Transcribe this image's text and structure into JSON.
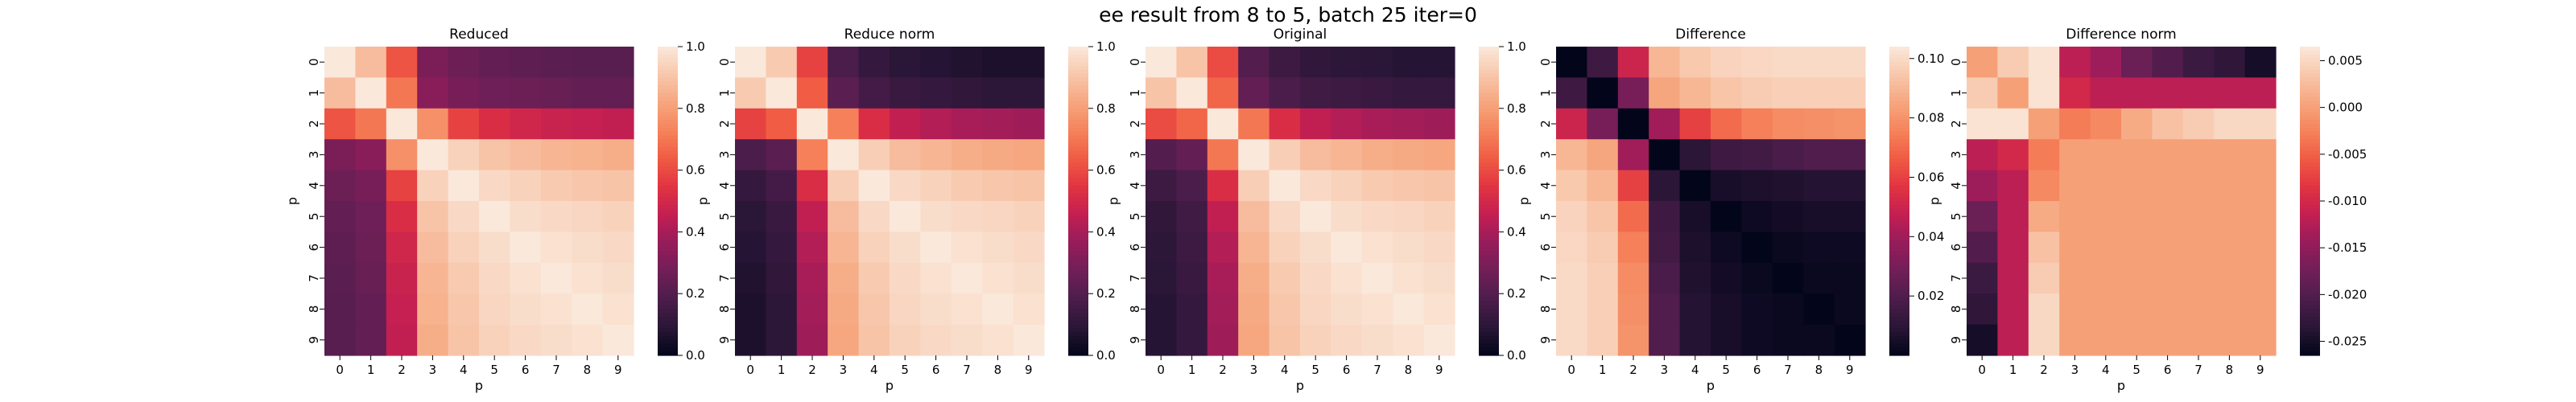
{
  "figure": {
    "title": "ee result from 8 to 5, batch 25 iter=0"
  },
  "palettes": {
    "rocket": [
      "#03051a",
      "#2a1636",
      "#4c1d4b",
      "#701f57",
      "#961c5b",
      "#c31f52",
      "#e13342",
      "#f05b43",
      "#f5835b",
      "#f6a67e",
      "#f8c7ab",
      "#fae8db"
    ]
  },
  "chart_data": [
    {
      "type": "heatmap",
      "title": "Reduced",
      "xlabel": "p",
      "ylabel": "p",
      "x_ticks": [
        "0",
        "1",
        "2",
        "3",
        "4",
        "5",
        "6",
        "7",
        "8",
        "9"
      ],
      "y_ticks": [
        "0",
        "1",
        "2",
        "3",
        "4",
        "5",
        "6",
        "7",
        "8",
        "9"
      ],
      "colorbar": {
        "min": 0.0,
        "max": 1.0,
        "ticks": [
          "0.0",
          "0.2",
          "0.4",
          "0.6",
          "0.8",
          "1.0"
        ],
        "tick_values": [
          0.0,
          0.2,
          0.4,
          0.6,
          0.8,
          1.0
        ]
      },
      "values": [
        [
          1.0,
          0.88,
          0.62,
          0.3,
          0.26,
          0.24,
          0.23,
          0.22,
          0.21,
          0.21
        ],
        [
          0.88,
          1.0,
          0.7,
          0.33,
          0.29,
          0.27,
          0.26,
          0.25,
          0.24,
          0.24
        ],
        [
          0.62,
          0.7,
          1.0,
          0.76,
          0.58,
          0.52,
          0.49,
          0.47,
          0.46,
          0.45
        ],
        [
          0.3,
          0.33,
          0.76,
          1.0,
          0.94,
          0.9,
          0.88,
          0.86,
          0.85,
          0.84
        ],
        [
          0.26,
          0.29,
          0.58,
          0.94,
          1.0,
          0.96,
          0.94,
          0.92,
          0.91,
          0.9
        ],
        [
          0.24,
          0.27,
          0.52,
          0.9,
          0.96,
          1.0,
          0.97,
          0.96,
          0.95,
          0.94
        ],
        [
          0.23,
          0.26,
          0.49,
          0.88,
          0.94,
          0.97,
          1.0,
          0.98,
          0.97,
          0.96
        ],
        [
          0.22,
          0.25,
          0.47,
          0.86,
          0.92,
          0.96,
          0.98,
          1.0,
          0.98,
          0.97
        ],
        [
          0.21,
          0.24,
          0.46,
          0.85,
          0.91,
          0.95,
          0.97,
          0.98,
          1.0,
          0.98
        ],
        [
          0.21,
          0.24,
          0.45,
          0.84,
          0.9,
          0.94,
          0.96,
          0.97,
          0.98,
          1.0
        ]
      ]
    },
    {
      "type": "heatmap",
      "title": "Reduce norm",
      "xlabel": "p",
      "ylabel": "p",
      "x_ticks": [
        "0",
        "1",
        "2",
        "3",
        "4",
        "5",
        "6",
        "7",
        "8",
        "9"
      ],
      "y_ticks": [
        "0",
        "1",
        "2",
        "3",
        "4",
        "5",
        "6",
        "7",
        "8",
        "9"
      ],
      "colorbar": {
        "min": 0.0,
        "max": 1.0,
        "ticks": [
          "0.0",
          "0.2",
          "0.4",
          "0.6",
          "0.8",
          "1.0"
        ],
        "tick_values": [
          0.0,
          0.2,
          0.4,
          0.6,
          0.8,
          1.0
        ]
      },
      "values": [
        [
          1.0,
          0.92,
          0.58,
          0.18,
          0.12,
          0.09,
          0.08,
          0.07,
          0.06,
          0.06
        ],
        [
          0.92,
          1.0,
          0.64,
          0.22,
          0.16,
          0.13,
          0.12,
          0.11,
          0.1,
          0.1
        ],
        [
          0.58,
          0.64,
          1.0,
          0.72,
          0.52,
          0.45,
          0.42,
          0.4,
          0.39,
          0.38
        ],
        [
          0.18,
          0.22,
          0.72,
          1.0,
          0.93,
          0.88,
          0.86,
          0.84,
          0.83,
          0.82
        ],
        [
          0.12,
          0.16,
          0.52,
          0.93,
          1.0,
          0.96,
          0.94,
          0.92,
          0.91,
          0.9
        ],
        [
          0.09,
          0.13,
          0.45,
          0.88,
          0.96,
          1.0,
          0.97,
          0.96,
          0.95,
          0.94
        ],
        [
          0.08,
          0.12,
          0.42,
          0.86,
          0.94,
          0.97,
          1.0,
          0.98,
          0.97,
          0.96
        ],
        [
          0.07,
          0.11,
          0.4,
          0.84,
          0.92,
          0.96,
          0.98,
          1.0,
          0.98,
          0.97
        ],
        [
          0.06,
          0.1,
          0.39,
          0.83,
          0.91,
          0.95,
          0.97,
          0.98,
          1.0,
          0.98
        ],
        [
          0.06,
          0.1,
          0.38,
          0.82,
          0.9,
          0.94,
          0.96,
          0.97,
          0.98,
          1.0
        ]
      ]
    },
    {
      "type": "heatmap",
      "title": "Original",
      "xlabel": "p",
      "ylabel": "p",
      "x_ticks": [
        "0",
        "1",
        "2",
        "3",
        "4",
        "5",
        "6",
        "7",
        "8",
        "9"
      ],
      "y_ticks": [
        "0",
        "1",
        "2",
        "3",
        "4",
        "5",
        "6",
        "7",
        "8",
        "9"
      ],
      "colorbar": {
        "min": 0.0,
        "max": 1.0,
        "ticks": [
          "0.0",
          "0.2",
          "0.4",
          "0.6",
          "0.8",
          "1.0"
        ],
        "tick_values": [
          0.0,
          0.2,
          0.4,
          0.6,
          0.8,
          1.0
        ]
      },
      "values": [
        [
          1.0,
          0.9,
          0.6,
          0.2,
          0.14,
          0.11,
          0.1,
          0.09,
          0.08,
          0.08
        ],
        [
          0.9,
          1.0,
          0.66,
          0.24,
          0.18,
          0.15,
          0.14,
          0.13,
          0.12,
          0.12
        ],
        [
          0.6,
          0.66,
          1.0,
          0.7,
          0.52,
          0.45,
          0.42,
          0.4,
          0.39,
          0.38
        ],
        [
          0.2,
          0.24,
          0.7,
          1.0,
          0.93,
          0.88,
          0.86,
          0.84,
          0.83,
          0.82
        ],
        [
          0.14,
          0.18,
          0.52,
          0.93,
          1.0,
          0.96,
          0.94,
          0.92,
          0.91,
          0.9
        ],
        [
          0.11,
          0.15,
          0.45,
          0.88,
          0.96,
          1.0,
          0.97,
          0.96,
          0.95,
          0.94
        ],
        [
          0.1,
          0.14,
          0.42,
          0.86,
          0.94,
          0.97,
          1.0,
          0.98,
          0.97,
          0.96
        ],
        [
          0.09,
          0.13,
          0.4,
          0.84,
          0.92,
          0.96,
          0.98,
          1.0,
          0.98,
          0.97
        ],
        [
          0.08,
          0.12,
          0.39,
          0.83,
          0.91,
          0.95,
          0.97,
          0.98,
          1.0,
          0.98
        ],
        [
          0.08,
          0.12,
          0.38,
          0.82,
          0.9,
          0.94,
          0.96,
          0.97,
          0.98,
          1.0
        ]
      ]
    },
    {
      "type": "heatmap",
      "title": "Difference",
      "xlabel": "p",
      "ylabel": "p",
      "x_ticks": [
        "0",
        "1",
        "2",
        "3",
        "4",
        "5",
        "6",
        "7",
        "8",
        "9"
      ],
      "y_ticks": [
        "0",
        "1",
        "2",
        "3",
        "4",
        "5",
        "6",
        "7",
        "8",
        "9"
      ],
      "colorbar": {
        "min": 0.0,
        "max": 0.104,
        "ticks": [
          "0.02",
          "0.04",
          "0.06",
          "0.08",
          "0.10"
        ],
        "tick_values": [
          0.02,
          0.04,
          0.06,
          0.08,
          0.1
        ]
      },
      "values": [
        [
          0.0,
          0.015,
          0.05,
          0.09,
          0.095,
          0.098,
          0.099,
          0.1,
          0.1,
          0.1
        ],
        [
          0.015,
          0.0,
          0.03,
          0.085,
          0.09,
          0.094,
          0.096,
          0.097,
          0.097,
          0.097
        ],
        [
          0.05,
          0.03,
          0.0,
          0.04,
          0.06,
          0.07,
          0.075,
          0.078,
          0.079,
          0.08
        ],
        [
          0.09,
          0.085,
          0.04,
          0.0,
          0.01,
          0.015,
          0.016,
          0.018,
          0.02,
          0.02
        ],
        [
          0.095,
          0.09,
          0.06,
          0.01,
          0.0,
          0.005,
          0.006,
          0.007,
          0.008,
          0.008
        ],
        [
          0.098,
          0.094,
          0.07,
          0.015,
          0.005,
          0.0,
          0.003,
          0.004,
          0.005,
          0.005
        ],
        [
          0.099,
          0.096,
          0.075,
          0.016,
          0.006,
          0.003,
          0.0,
          0.002,
          0.003,
          0.003
        ],
        [
          0.1,
          0.097,
          0.078,
          0.018,
          0.007,
          0.004,
          0.002,
          0.0,
          0.002,
          0.002
        ],
        [
          0.1,
          0.097,
          0.079,
          0.02,
          0.008,
          0.005,
          0.003,
          0.002,
          0.0,
          0.002
        ],
        [
          0.1,
          0.097,
          0.08,
          0.02,
          0.008,
          0.005,
          0.003,
          0.002,
          0.002,
          0.0
        ]
      ]
    },
    {
      "type": "heatmap",
      "title": "Difference norm",
      "xlabel": "p",
      "ylabel": "p",
      "x_ticks": [
        "0",
        "1",
        "2",
        "3",
        "4",
        "5",
        "6",
        "7",
        "8",
        "9"
      ],
      "y_ticks": [
        "0",
        "1",
        "2",
        "3",
        "4",
        "5",
        "6",
        "7",
        "8",
        "9"
      ],
      "colorbar": {
        "min": -0.0265,
        "max": 0.0065,
        "ticks": [
          "-0.025",
          "-0.020",
          "-0.015",
          "-0.010",
          "-0.005",
          "0.000",
          "0.005"
        ],
        "tick_values": [
          -0.025,
          -0.02,
          -0.015,
          -0.01,
          -0.005,
          0.0,
          0.005
        ]
      },
      "values": [
        [
          0.0,
          0.004,
          0.006,
          -0.012,
          -0.014,
          -0.018,
          -0.02,
          -0.022,
          -0.023,
          -0.025
        ],
        [
          0.004,
          0.0,
          0.006,
          -0.01,
          -0.012,
          -0.012,
          -0.012,
          -0.012,
          -0.012,
          -0.012
        ],
        [
          0.006,
          0.006,
          0.0,
          -0.003,
          -0.002,
          0.001,
          0.003,
          0.004,
          0.005,
          0.005
        ],
        [
          -0.012,
          -0.01,
          -0.003,
          0.0,
          0.0,
          0.0,
          0.0,
          0.0,
          0.0,
          0.0
        ],
        [
          -0.014,
          -0.012,
          -0.002,
          0.0,
          0.0,
          0.0,
          0.0,
          0.0,
          0.0,
          0.0
        ],
        [
          -0.018,
          -0.012,
          0.001,
          0.0,
          0.0,
          0.0,
          0.0,
          0.0,
          0.0,
          0.0
        ],
        [
          -0.02,
          -0.012,
          0.003,
          0.0,
          0.0,
          0.0,
          0.0,
          0.0,
          0.0,
          0.0
        ],
        [
          -0.022,
          -0.012,
          0.004,
          0.0,
          0.0,
          0.0,
          0.0,
          0.0,
          0.0,
          0.0
        ],
        [
          -0.023,
          -0.012,
          0.005,
          0.0,
          0.0,
          0.0,
          0.0,
          0.0,
          0.0,
          0.0
        ],
        [
          -0.025,
          -0.012,
          0.005,
          0.0,
          0.0,
          0.0,
          0.0,
          0.0,
          0.0,
          0.0
        ]
      ]
    }
  ]
}
